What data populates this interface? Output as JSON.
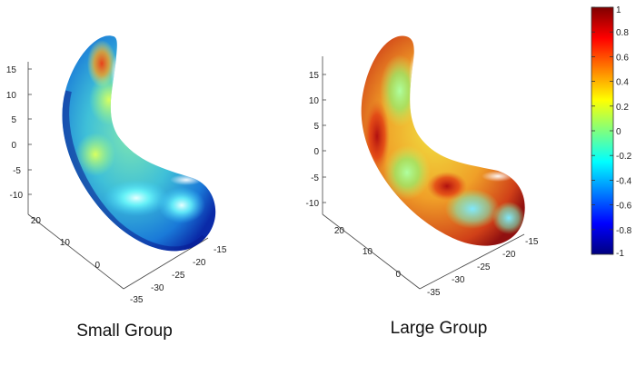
{
  "chart_data": [
    {
      "type": "surface",
      "caption": "Small Group",
      "z_ticks": [
        "15",
        "10",
        "5",
        "0",
        "-5",
        "-10"
      ],
      "y_ticks": [
        "20",
        "10",
        "0"
      ],
      "x_ticks": [
        "-35",
        "-30",
        "-25",
        "-20",
        "-15"
      ],
      "color_trend": "mostly blue to cyan, green and yellow patches, red-orange at upper tip"
    },
    {
      "type": "surface",
      "caption": "Large Group",
      "z_ticks": [
        "15",
        "10",
        "5",
        "0",
        "-5",
        "-10"
      ],
      "y_ticks": [
        "20",
        "10",
        "0"
      ],
      "x_ticks": [
        "-35",
        "-30",
        "-25",
        "-20",
        "-15"
      ],
      "color_trend": "mostly yellow to red, with green and cyan patches"
    }
  ],
  "colorbar": {
    "min": -1,
    "max": 1,
    "tick_labels": [
      "1",
      "0.8",
      "0.6",
      "0.4",
      "0.2",
      "0",
      "-0.2",
      "-0.4",
      "-0.6",
      "-0.8",
      "-1"
    ],
    "colormap": [
      "#00007f",
      "#0000ff",
      "#007fff",
      "#00ffff",
      "#7fff7f",
      "#ffff00",
      "#ff7f00",
      "#ff0000",
      "#7f0000"
    ]
  }
}
